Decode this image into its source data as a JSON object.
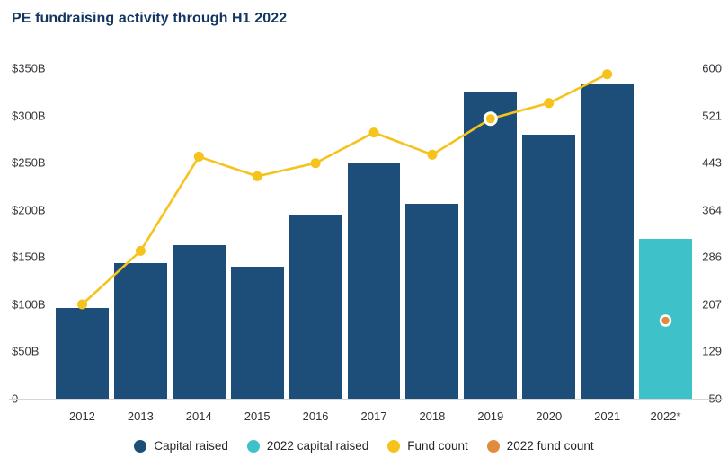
{
  "title": "PE fundraising activity through H1 2022",
  "colors": {
    "capital_raised": "#1d4e79",
    "capital_raised_2022": "#3fc1ca",
    "fund_count": "#f6c31c",
    "fund_count_2022": "#e18b3f",
    "title_text": "#12365f",
    "axis_text": "#34383d",
    "axis_line": "#d6d6d6",
    "highlight_ring": "#ffffff"
  },
  "chart_data": {
    "type": "combo",
    "categories": [
      "2012",
      "2013",
      "2014",
      "2015",
      "2016",
      "2017",
      "2018",
      "2019",
      "2020",
      "2021",
      "2022*"
    ],
    "series": [
      {
        "name": "Capital raised",
        "type": "bar",
        "axis": "left",
        "color_key": "capital_raised",
        "values": [
          96,
          144,
          163,
          140,
          194,
          249,
          206,
          324,
          280,
          333,
          null
        ]
      },
      {
        "name": "2022 capital raised",
        "type": "bar",
        "axis": "left",
        "color_key": "capital_raised_2022",
        "values": [
          null,
          null,
          null,
          null,
          null,
          null,
          null,
          null,
          null,
          null,
          169
        ]
      },
      {
        "name": "Fund count",
        "type": "line",
        "axis": "right",
        "color_key": "fund_count",
        "values": [
          207,
          296,
          453,
          420,
          442,
          493,
          456,
          516,
          542,
          590,
          null
        ],
        "highlight_index": 7
      },
      {
        "name": "2022 fund count",
        "type": "point",
        "axis": "right",
        "color_key": "fund_count_2022",
        "values": [
          null,
          null,
          null,
          null,
          null,
          null,
          null,
          null,
          null,
          null,
          180
        ],
        "ring": true
      }
    ],
    "left_axis": {
      "min": 0,
      "max": 350,
      "tick_labels": [
        "$350B",
        "$300B",
        "$250B",
        "$200B",
        "$150B",
        "$100B",
        "$50B",
        "0"
      ],
      "unit": "$B"
    },
    "right_axis": {
      "min": 50,
      "max": 600,
      "tick_labels": [
        "600",
        "521",
        "443",
        "364",
        "286",
        "207",
        "129",
        "50"
      ]
    },
    "grid": "off",
    "legend_position": "bottom",
    "legend": [
      {
        "label": "Capital raised",
        "color_key": "capital_raised"
      },
      {
        "label": "2022 capital raised",
        "color_key": "capital_raised_2022"
      },
      {
        "label": "Fund count",
        "color_key": "fund_count"
      },
      {
        "label": "2022 fund count",
        "color_key": "fund_count_2022"
      }
    ]
  }
}
